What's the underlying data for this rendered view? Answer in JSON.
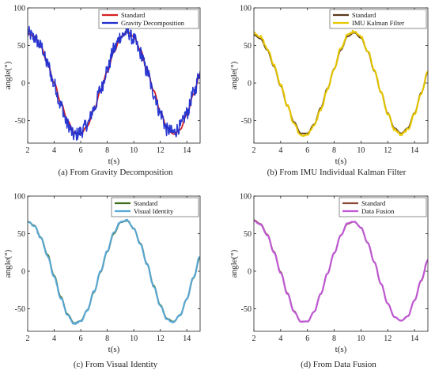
{
  "chart_data": [
    {
      "type": "line",
      "caption": "(a) From Gravity Decomposition",
      "xlabel": "t(s)",
      "ylabel": "angle(°)",
      "xlim": [
        2,
        15
      ],
      "ylim": [
        -80,
        100
      ],
      "xticks": [
        "2",
        "4",
        "6",
        "8",
        "10",
        "12",
        "14"
      ],
      "yticks": [
        "-50",
        "0",
        "50",
        "100"
      ],
      "grid": false,
      "legend_position": "top-right",
      "series": [
        {
          "name": "Standard",
          "color": "#d62020",
          "noise": 0,
          "x": [
            2,
            2.5,
            3,
            3.5,
            4,
            4.5,
            5,
            5.5,
            6,
            6.5,
            7,
            7.5,
            8,
            8.5,
            9,
            9.5,
            10,
            10.5,
            11,
            11.5,
            12,
            12.5,
            13,
            13.5,
            14,
            14.5,
            15
          ],
          "y": [
            66,
            62,
            48,
            26,
            0,
            -26,
            -50,
            -66,
            -68,
            -57,
            -36,
            -10,
            15,
            41,
            61,
            68,
            62,
            44,
            18,
            -10,
            -38,
            -59,
            -68,
            -62,
            -42,
            -15,
            12
          ]
        },
        {
          "name": "Gravity Decomposition",
          "color": "#1f2fd0",
          "noise": 9,
          "x": [
            2,
            2.5,
            3,
            3.5,
            4,
            4.5,
            5,
            5.5,
            6,
            6.5,
            7,
            7.5,
            8,
            8.5,
            9,
            9.5,
            10,
            10.5,
            11,
            11.5,
            12,
            12.5,
            13,
            13.5,
            14,
            14.5,
            15
          ],
          "y": [
            67,
            60,
            49,
            25,
            -2,
            -30,
            -55,
            -70,
            -65,
            -55,
            -34,
            -8,
            18,
            45,
            62,
            68,
            58,
            40,
            15,
            -14,
            -40,
            -62,
            -66,
            -58,
            -40,
            -14,
            14
          ]
        }
      ]
    },
    {
      "type": "line",
      "caption": "(b) From IMU Individual Kalman Filter",
      "xlabel": "t(s)",
      "ylabel": "angle(°)",
      "xlim": [
        2,
        15
      ],
      "ylim": [
        -80,
        100
      ],
      "xticks": [
        "2",
        "4",
        "6",
        "8",
        "10",
        "12",
        "14"
      ],
      "yticks": [
        "-50",
        "0",
        "50",
        "100"
      ],
      "grid": false,
      "legend_position": "top-right",
      "series": [
        {
          "name": "Standard",
          "color": "#5a3a1a",
          "noise": 0,
          "x": [
            2,
            2.5,
            3,
            3.5,
            4,
            4.5,
            5,
            5.5,
            6,
            6.5,
            7,
            7.5,
            8,
            8.5,
            9,
            9.5,
            10,
            10.5,
            11,
            11.5,
            12,
            12.5,
            13,
            13.5,
            14,
            14.5,
            15
          ],
          "y": [
            64,
            59,
            44,
            22,
            -4,
            -30,
            -52,
            -67,
            -67,
            -55,
            -33,
            -7,
            19,
            44,
            62,
            67,
            60,
            42,
            16,
            -12,
            -40,
            -60,
            -67,
            -60,
            -40,
            -13,
            14
          ]
        },
        {
          "name": "IMU Kalman Filter",
          "color": "#e8c800",
          "noise": 1.5,
          "x": [
            2,
            2.5,
            3,
            3.5,
            4,
            4.5,
            5,
            5.5,
            6,
            6.5,
            7,
            7.5,
            8,
            8.5,
            9,
            9.5,
            10,
            10.5,
            11,
            11.5,
            12,
            12.5,
            13,
            13.5,
            14,
            14.5,
            15
          ],
          "y": [
            67,
            62,
            46,
            24,
            -2,
            -30,
            -54,
            -70,
            -69,
            -57,
            -35,
            -8,
            19,
            46,
            64,
            69,
            62,
            43,
            17,
            -12,
            -41,
            -62,
            -69,
            -62,
            -41,
            -14,
            15
          ]
        }
      ]
    },
    {
      "type": "line",
      "caption": "(c) From Visual Identity",
      "xlabel": "t(s)",
      "ylabel": "angle(°)",
      "xlim": [
        2,
        15
      ],
      "ylim": [
        -80,
        100
      ],
      "xticks": [
        "2",
        "4",
        "6",
        "8",
        "10",
        "12",
        "14"
      ],
      "yticks": [
        "-50",
        "0",
        "50",
        "100"
      ],
      "grid": false,
      "legend_position": "top-right",
      "series": [
        {
          "name": "Standard",
          "color": "#3f6e1c",
          "noise": 0,
          "x": [
            2,
            2.5,
            3,
            3.5,
            4,
            4.5,
            5,
            5.5,
            6,
            6.5,
            7,
            7.5,
            8,
            8.5,
            9,
            9.5,
            10,
            10.5,
            11,
            11.5,
            12,
            12.5,
            13,
            13.5,
            14,
            14.5,
            15
          ],
          "y": [
            66,
            61,
            45,
            22,
            -6,
            -34,
            -57,
            -69,
            -66,
            -52,
            -28,
            -1,
            26,
            50,
            65,
            67,
            57,
            37,
            10,
            -19,
            -45,
            -63,
            -67,
            -58,
            -37,
            -9,
            18
          ]
        },
        {
          "name": "Visual Identity",
          "color": "#5aa8d8",
          "noise": 1,
          "x": [
            2,
            2.5,
            3,
            3.5,
            4,
            4.5,
            5,
            5.5,
            6,
            6.5,
            7,
            7.5,
            8,
            8.5,
            9,
            9.5,
            10,
            10.5,
            11,
            11.5,
            12,
            12.5,
            13,
            13.5,
            14,
            14.5,
            15
          ],
          "y": [
            66,
            60,
            44,
            20,
            -8,
            -36,
            -58,
            -70,
            -67,
            -52,
            -27,
            0,
            27,
            51,
            66,
            68,
            57,
            36,
            9,
            -20,
            -46,
            -64,
            -68,
            -58,
            -36,
            -8,
            20
          ]
        }
      ]
    },
    {
      "type": "line",
      "caption": "(d) From Data Fusion",
      "xlabel": "t(s)",
      "ylabel": "angle(°)",
      "xlim": [
        2,
        15
      ],
      "ylim": [
        -80,
        100
      ],
      "xticks": [
        "2",
        "4",
        "6",
        "8",
        "10",
        "12",
        "14"
      ],
      "yticks": [
        "-50",
        "0",
        "50",
        "100"
      ],
      "grid": false,
      "legend_position": "top-right",
      "series": [
        {
          "name": "Standard",
          "color": "#8a4a3a",
          "noise": 0,
          "x": [
            2,
            2.5,
            3,
            3.5,
            4,
            4.5,
            5,
            5.5,
            6,
            6.5,
            7,
            7.5,
            8,
            8.5,
            9,
            9.5,
            10,
            10.5,
            11,
            11.5,
            12,
            12.5,
            13,
            13.5,
            14,
            14.5,
            15
          ],
          "y": [
            68,
            63,
            49,
            26,
            -1,
            -29,
            -53,
            -67,
            -67,
            -54,
            -30,
            -3,
            24,
            48,
            63,
            66,
            58,
            38,
            12,
            -17,
            -43,
            -61,
            -66,
            -60,
            -39,
            -13,
            14
          ]
        },
        {
          "name": "Data Fusion",
          "color": "#c058d8",
          "noise": 0.5,
          "x": [
            2,
            2.5,
            3,
            3.5,
            4,
            4.5,
            5,
            5.5,
            6,
            6.5,
            7,
            7.5,
            8,
            8.5,
            9,
            9.5,
            10,
            10.5,
            11,
            11.5,
            12,
            12.5,
            13,
            13.5,
            14,
            14.5,
            15
          ],
          "y": [
            67,
            62,
            48,
            25,
            -2,
            -30,
            -54,
            -67,
            -67,
            -54,
            -30,
            -3,
            24,
            48,
            64,
            66,
            58,
            38,
            12,
            -17,
            -43,
            -61,
            -66,
            -60,
            -39,
            -12,
            15
          ]
        }
      ]
    }
  ]
}
